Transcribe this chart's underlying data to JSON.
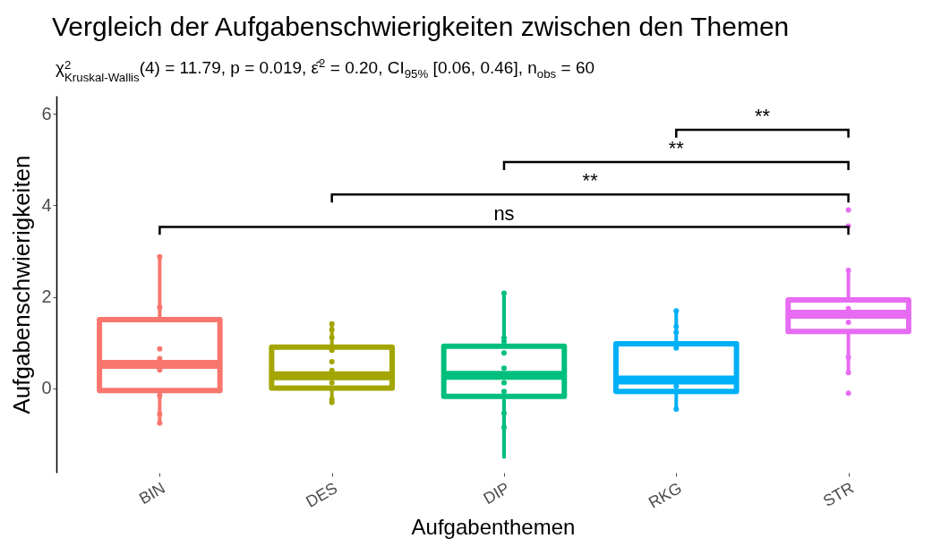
{
  "chart_data": {
    "type": "box",
    "title": "Vergleich der Aufgabenschwierigkeiten zwischen den Themen",
    "subtitle": "χ$^{2}$$_{Kruskal-Wallis}$(4) = 11.79, p = 0.019, ε̂$^{2}$ = 0.20, CI$_{95%}$ [0.06, 0.46], n$_{obs}$ = 60",
    "xlabel": "Aufgabenthemen",
    "ylabel": "Aufgabenschwierigkeiten",
    "categories": [
      "BIN",
      "DES",
      "DIP",
      "RKG",
      "STR"
    ],
    "colors": [
      "#f8766d",
      "#a3a500",
      "#00bf7d",
      "#00b0f6",
      "#e76bf3"
    ],
    "boxes": [
      {
        "low": -0.75,
        "q1": -0.05,
        "median": 0.52,
        "q3": 1.5,
        "high": 2.88
      },
      {
        "low": -0.3,
        "q1": 0.0,
        "median": 0.27,
        "q3": 0.9,
        "high": 1.41
      },
      {
        "low": -1.54,
        "q1": -0.18,
        "median": 0.28,
        "q3": 0.92,
        "high": 2.08
      },
      {
        "low": -0.45,
        "q1": -0.07,
        "median": 0.18,
        "q3": 0.97,
        "high": 1.69
      },
      {
        "low": 0.33,
        "q1": 1.24,
        "median": 1.62,
        "q3": 1.93,
        "high": 2.56
      }
    ],
    "series": [
      {
        "type": "scatter",
        "color": "#f8766d",
        "x": [
          "BIN",
          "BIN",
          "BIN",
          "BIN",
          "BIN",
          "BIN",
          "BIN",
          "BIN"
        ],
        "values": [
          2.88,
          1.77,
          0.86,
          0.65,
          0.4,
          -0.16,
          -0.57,
          -0.76
        ]
      },
      {
        "type": "scatter",
        "color": "#a3a500",
        "x": [
          "DES",
          "DES",
          "DES",
          "DES",
          "DES",
          "DES",
          "DES",
          "DES",
          "DES"
        ],
        "values": [
          1.41,
          1.28,
          1.11,
          0.83,
          0.58,
          0.39,
          0.12,
          -0.25,
          -0.31
        ]
      },
      {
        "type": "scatter",
        "color": "#00bf7d",
        "x": [
          "DIP",
          "DIP",
          "DIP",
          "DIP",
          "DIP",
          "DIP",
          "DIP",
          "DIP",
          "DIP"
        ],
        "values": [
          2.08,
          1.1,
          1.02,
          0.77,
          0.44,
          0.12,
          -0.07,
          -0.55,
          -0.86
        ]
      },
      {
        "type": "scatter",
        "color": "#00b0f6",
        "x": [
          "RKG",
          "RKG",
          "RKG",
          "RKG",
          "RKG",
          "RKG"
        ],
        "values": [
          1.69,
          1.35,
          1.22,
          0.88,
          0.04,
          -0.46
        ]
      },
      {
        "type": "scatter",
        "color": "#e76bf3",
        "x": [
          "STR",
          "STR",
          "STR",
          "STR",
          "STR",
          "STR",
          "STR",
          "STR"
        ],
        "values": [
          3.9,
          3.55,
          2.58,
          1.74,
          1.44,
          0.68,
          0.34,
          -0.11
        ]
      }
    ],
    "marker": "circle",
    "ylim": [
      -1.85,
      6.4
    ],
    "yticks": [
      0,
      2,
      4,
      6
    ],
    "annotations": [
      "ns",
      "**",
      "**",
      "**"
    ]
  }
}
